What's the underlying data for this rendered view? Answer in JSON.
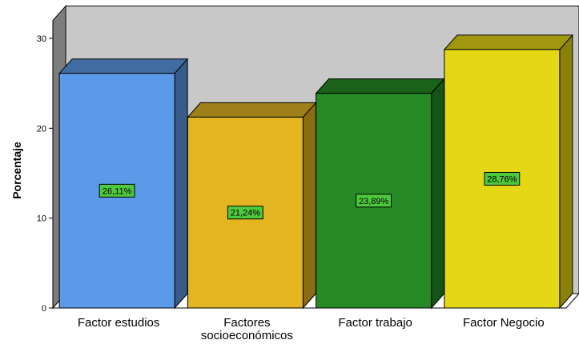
{
  "chart_data": {
    "type": "bar",
    "three_d": true,
    "title": "",
    "xlabel": "",
    "ylabel": "Porcentaje",
    "ylim": [
      0,
      32
    ],
    "yticks": [
      0,
      10,
      20,
      30
    ],
    "grid": false,
    "legend": "none",
    "categories": [
      [
        "Factor estudios"
      ],
      [
        "Factores",
        "socioeconómicos"
      ],
      [
        "Factor trabajo"
      ],
      [
        "Factor Negocio"
      ]
    ],
    "values": [
      26.11,
      21.24,
      23.89,
      28.76
    ],
    "data_labels": [
      "26,11%",
      "21,24%",
      "23,89%",
      "28,76%"
    ],
    "colors": [
      "#5b9ae8",
      "#e3b521",
      "#258a25",
      "#e6d715"
    ],
    "data_label_background": "#4ec93d",
    "background_wall": "#c8c8c8",
    "side_wall": "#7d7d7d"
  }
}
